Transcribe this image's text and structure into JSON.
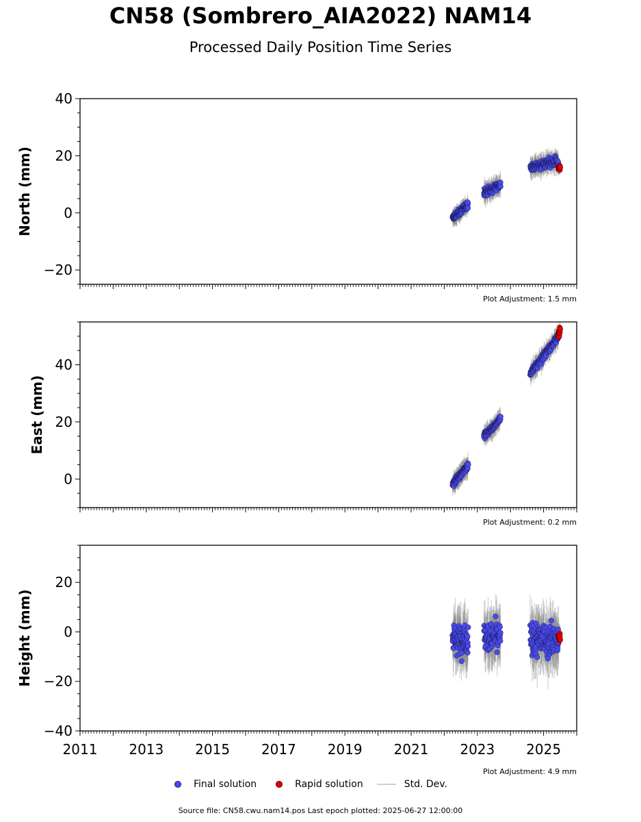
{
  "title": "CN58 (Sombrero_AIA2022) NAM14",
  "subtitle": "Processed Daily Position Time Series",
  "legend": {
    "final": "Final solution",
    "rapid": "Rapid solution",
    "stddev": "Std. Dev."
  },
  "footer": "Source file: CN58.cwu.nam14.pos  Last epoch plotted: 2025-06-27 12:00:00",
  "colors": {
    "final": "#4a4af0",
    "rapid": "#e00000",
    "stddev": "#7f7f7f"
  },
  "chart_data": [
    {
      "type": "scatter",
      "ylabel": "North (mm)",
      "ylim": [
        -25,
        40
      ],
      "yticks": [
        -20,
        0,
        20,
        40
      ],
      "ytick_labels": [
        "−20",
        "0",
        "20",
        "40"
      ],
      "xlim": [
        2011,
        2026
      ],
      "adjustment": "Plot Adjustment: 1.5 mm",
      "series": [
        {
          "name": "Final solution",
          "segments": [
            {
              "x": [
                2022.25,
                2022.72
              ],
              "y": [
                -2,
                3
              ],
              "sd": 2.5,
              "n": 110,
              "spread": 1.5
            },
            {
              "x": [
                2023.2,
                2023.7
              ],
              "y": [
                7,
                10
              ],
              "sd": 3,
              "n": 90,
              "spread": 1.6
            },
            {
              "x": [
                2024.6,
                2025.45
              ],
              "y": [
                16,
                18
              ],
              "sd": 3,
              "n": 160,
              "spread": 1.8
            }
          ]
        },
        {
          "name": "Rapid solution",
          "segments": [
            {
              "x": [
                2025.45,
                2025.5
              ],
              "y": [
                15.5,
                16
              ],
              "sd": 2,
              "n": 18,
              "spread": 1
            }
          ]
        }
      ]
    },
    {
      "type": "scatter",
      "ylabel": "East (mm)",
      "ylim": [
        -10,
        55
      ],
      "yticks": [
        0,
        20,
        40
      ],
      "ytick_labels": [
        "0",
        "20",
        "40"
      ],
      "xlim": [
        2011,
        2026
      ],
      "adjustment": "Plot Adjustment: 0.2 mm",
      "series": [
        {
          "name": "Final solution",
          "segments": [
            {
              "x": [
                2022.25,
                2022.72
              ],
              "y": [
                -2,
                5
              ],
              "sd": 3,
              "n": 110,
              "spread": 1.3
            },
            {
              "x": [
                2023.2,
                2023.7
              ],
              "y": [
                15,
                21
              ],
              "sd": 3,
              "n": 90,
              "spread": 1.3
            },
            {
              "x": [
                2024.6,
                2025.45
              ],
              "y": [
                37,
                50
              ],
              "sd": 3,
              "n": 160,
              "spread": 1.5
            }
          ]
        },
        {
          "name": "Rapid solution",
          "segments": [
            {
              "x": [
                2025.45,
                2025.5
              ],
              "y": [
                50.5,
                52.5
              ],
              "sd": 2,
              "n": 18,
              "spread": 1
            }
          ]
        }
      ]
    },
    {
      "type": "scatter",
      "ylabel": "Height (mm)",
      "ylim": [
        -40,
        35
      ],
      "yticks": [
        -40,
        -20,
        0,
        20
      ],
      "ytick_labels": [
        "−40",
        "−20",
        "0",
        "20"
      ],
      "xlim": [
        2011,
        2026
      ],
      "xticks": [
        2011,
        2013,
        2015,
        2017,
        2019,
        2021,
        2023,
        2025
      ],
      "xtick_labels": [
        "2011",
        "2013",
        "2015",
        "2017",
        "2019",
        "2021",
        "2023",
        "2025"
      ],
      "adjustment": "Plot Adjustment: 4.9 mm",
      "series": [
        {
          "name": "Final solution",
          "segments": [
            {
              "x": [
                2022.25,
                2022.72
              ],
              "y": [
                -3,
                -3
              ],
              "sd": 9,
              "n": 110,
              "spread": 6.5
            },
            {
              "x": [
                2023.2,
                2023.7
              ],
              "y": [
                -2,
                -2
              ],
              "sd": 9,
              "n": 90,
              "spread": 7
            },
            {
              "x": [
                2024.6,
                2025.45
              ],
              "y": [
                -3,
                -3
              ],
              "sd": 9,
              "n": 160,
              "spread": 7.5
            }
          ]
        },
        {
          "name": "Rapid solution",
          "segments": [
            {
              "x": [
                2025.45,
                2025.5
              ],
              "y": [
                -2.5,
                -2.5
              ],
              "sd": 4,
              "n": 18,
              "spread": 2.5
            }
          ]
        }
      ]
    }
  ]
}
